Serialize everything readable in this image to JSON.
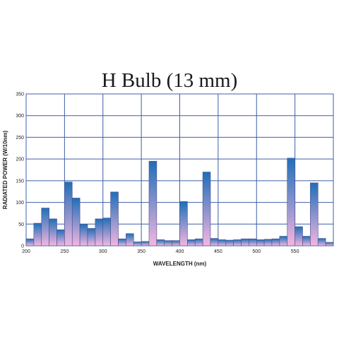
{
  "chart_data": {
    "type": "bar",
    "title": "H Bulb (13 mm)",
    "xlabel": "WAVELENGTH (nm)",
    "ylabel": "RADIATED POWER (W/10nm)",
    "xlim": [
      200,
      600
    ],
    "ylim": [
      0,
      350
    ],
    "x_ticks": [
      200,
      250,
      300,
      350,
      400,
      450,
      500,
      550
    ],
    "y_ticks": [
      0,
      50,
      100,
      150,
      200,
      250,
      300,
      350
    ],
    "grid": true,
    "bin_width": 10,
    "x": [
      200,
      210,
      220,
      230,
      240,
      250,
      260,
      270,
      280,
      290,
      300,
      310,
      320,
      330,
      340,
      350,
      360,
      370,
      380,
      390,
      400,
      410,
      420,
      430,
      440,
      450,
      460,
      470,
      480,
      490,
      500,
      510,
      520,
      530,
      540,
      550,
      560,
      570,
      580,
      590
    ],
    "values": [
      16,
      52,
      87,
      62,
      37,
      147,
      110,
      50,
      40,
      62,
      64,
      124,
      16,
      28,
      9,
      10,
      195,
      14,
      12,
      12,
      102,
      14,
      16,
      170,
      17,
      14,
      13,
      14,
      16,
      16,
      14,
      15,
      16,
      22,
      202,
      44,
      22,
      145,
      17,
      8
    ],
    "colors": {
      "bar_top": "#1e6fb8",
      "bar_bottom": "#f3b6e0",
      "bar_stroke": "#4b4f8a",
      "grid": "#3f5fa8"
    }
  }
}
